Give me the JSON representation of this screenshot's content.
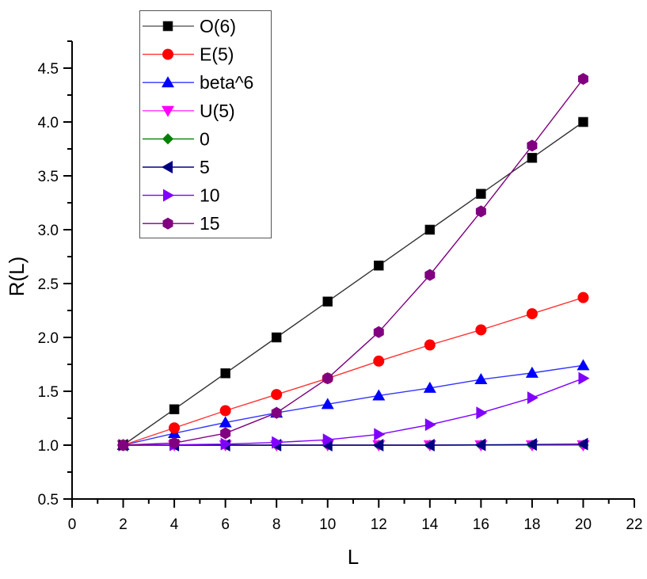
{
  "chart_data": {
    "type": "line",
    "title": "",
    "xlabel": "L",
    "ylabel": "R(L)",
    "xlim": [
      0,
      22
    ],
    "ylim": [
      0.5,
      4.75
    ],
    "xticks": [
      0,
      2,
      4,
      6,
      8,
      10,
      12,
      14,
      16,
      18,
      20,
      22
    ],
    "xtick_labels": [
      "0",
      "2",
      "4",
      "6",
      "8",
      "10",
      "12",
      "14",
      "16",
      "18",
      "20",
      "22"
    ],
    "yticks": [
      0.5,
      1.0,
      1.5,
      2.0,
      2.5,
      3.0,
      3.5,
      4.0,
      4.5
    ],
    "ytick_labels": [
      "0.5",
      "1.0",
      "1.5",
      "2.0",
      "2.5",
      "3.0",
      "3.5",
      "4.0",
      "4.5"
    ],
    "grid": false,
    "legend_position": "upper-left",
    "x": [
      2,
      4,
      6,
      8,
      10,
      12,
      14,
      16,
      18,
      20
    ],
    "series": [
      {
        "name": "O(6)",
        "color": "#000000",
        "line_color": "#333333",
        "marker": "square",
        "values": [
          1.0,
          1.333,
          1.667,
          2.0,
          2.333,
          2.667,
          3.0,
          3.333,
          3.667,
          4.0
        ]
      },
      {
        "name": "E(5)",
        "color": "#ff0000",
        "line_color": "#ff3333",
        "marker": "circle",
        "values": [
          1.0,
          1.16,
          1.32,
          1.47,
          1.62,
          1.78,
          1.93,
          2.07,
          2.22,
          2.37
        ]
      },
      {
        "name": "beta^6",
        "color": "#0000ff",
        "line_color": "#3333ff",
        "marker": "triangle-up",
        "values": [
          1.0,
          1.11,
          1.21,
          1.3,
          1.38,
          1.46,
          1.53,
          1.61,
          1.67,
          1.74
        ]
      },
      {
        "name": "U(5)",
        "color": "#ff00ff",
        "line_color": "#ff33ff",
        "marker": "triangle-down",
        "values": [
          1.0,
          1.0,
          1.0,
          1.0,
          1.0,
          1.0,
          1.0,
          1.0,
          1.0,
          1.0
        ]
      },
      {
        "name": "0",
        "color": "#008000",
        "line_color": "#008000",
        "marker": "diamond",
        "values": [
          1.0,
          1.0,
          1.0,
          1.0,
          1.0,
          1.0,
          1.0,
          1.0,
          1.0,
          1.0
        ]
      },
      {
        "name": "5",
        "color": "#000080",
        "line_color": "#000080",
        "marker": "triangle-left",
        "values": [
          1.0,
          1.0,
          1.0,
          1.0,
          1.0,
          1.0,
          1.0,
          1.003,
          1.006,
          1.01
        ]
      },
      {
        "name": "10",
        "color": "#8000ff",
        "line_color": "#8000ff",
        "marker": "triangle-right",
        "values": [
          1.0,
          1.003,
          1.01,
          1.025,
          1.05,
          1.1,
          1.19,
          1.3,
          1.44,
          1.62
        ]
      },
      {
        "name": "15",
        "color": "#800080",
        "line_color": "#800080",
        "marker": "hexagon",
        "values": [
          1.0,
          1.02,
          1.11,
          1.3,
          1.62,
          2.05,
          2.58,
          3.17,
          3.78,
          4.4
        ]
      }
    ]
  }
}
